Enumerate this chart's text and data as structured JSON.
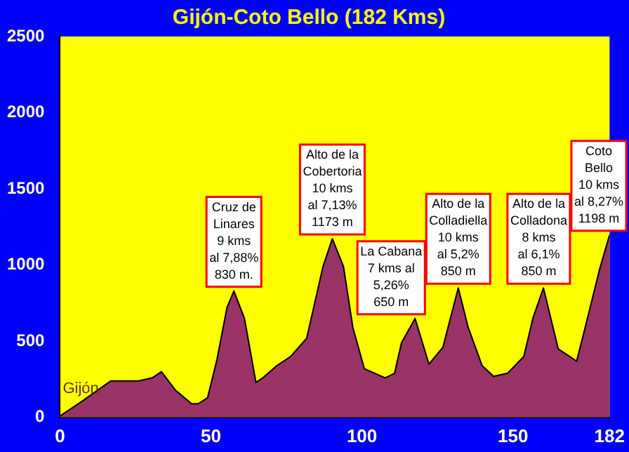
{
  "chart_data": {
    "type": "area",
    "title": "Gijón-Coto Bello (182 Kms)",
    "x": [
      0,
      4.6,
      7.6,
      16.8,
      18,
      26,
      30.6,
      33.6,
      38.2,
      43.6,
      45.8,
      48.9,
      52,
      55.3,
      57.6,
      61.1,
      64.9,
      67.2,
      71.8,
      76.4,
      81.7,
      87.1,
      90.2,
      93.9,
      97,
      100.8,
      107.7,
      110.8,
      113.1,
      117.6,
      122.2,
      126.8,
      131.9,
      135.2,
      139.8,
      143.6,
      148.2,
      153.6,
      156.6,
      160.1,
      165,
      171.1,
      173.4,
      178.8,
      182
    ],
    "series": [
      {
        "color": "#993366",
        "values": [
          10,
          70,
          110,
          240,
          240,
          240,
          260,
          300,
          180,
          90,
          90,
          130,
          380,
          720,
          830,
          650,
          230,
          260,
          340,
          400,
          520,
          990,
          1173,
          990,
          590,
          320,
          260,
          290,
          490,
          650,
          350,
          460,
          850,
          590,
          340,
          270,
          290,
          400,
          650,
          850,
          450,
          370,
          550,
          980,
          1198
        ]
      }
    ],
    "xlim": [
      0,
      182
    ],
    "xticks": [
      0,
      50,
      100,
      150,
      182
    ],
    "ylim": [
      0,
      2500
    ],
    "yticks": [
      0,
      500,
      1000,
      1500,
      2000,
      2500
    ],
    "grid": false,
    "legend": false,
    "annotations": [
      {
        "text": "Gijón",
        "x": 0,
        "y": 10
      },
      {
        "text": "Cruz de\nLinares\n9 kms\nal 7,88%\n830 m.",
        "x": 57.6,
        "y": 830
      },
      {
        "text": "Alto de la\nCobertoria\n10 kms\nal 7,13%\n1173 m",
        "x": 90.2,
        "y": 1173
      },
      {
        "text": "La Cabana\n7 kms al\n5,26%\n650 m",
        "x": 117.6,
        "y": 650
      },
      {
        "text": "Alto de la\nColladiella\n10 kms\nal 5,2%\n850 m",
        "x": 131.9,
        "y": 850
      },
      {
        "text": "Alto de la\nColladona\n8 kms\nal 6,1%\n850 m",
        "x": 160.1,
        "y": 850
      },
      {
        "text": "Coto\nBello\n10 kms\nal 8,27%\n1198 m",
        "x": 182,
        "y": 1198
      }
    ]
  }
}
